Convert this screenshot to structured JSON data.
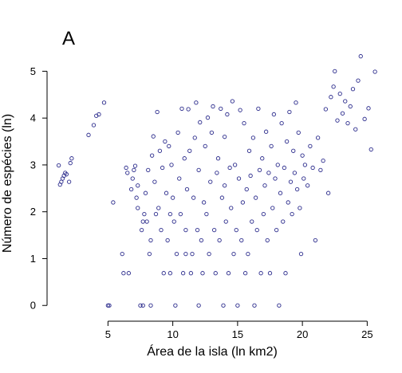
{
  "chart_data": {
    "type": "scatter",
    "panel_label": "A",
    "xlabel": "Área de la isla (ln km2)",
    "ylabel": "Número de espécies (ln)",
    "xlim": [
      0.3,
      25.9
    ],
    "ylim": [
      -0.2,
      5.5
    ],
    "xticks": [
      5,
      10,
      15,
      20,
      25
    ],
    "yticks": [
      0,
      1,
      2,
      3,
      4,
      5
    ],
    "grid": false,
    "point_color": "#2b2b8c",
    "series": [
      {
        "points": [
          [
            1.2,
            2.99
          ],
          [
            1.3,
            2.58
          ],
          [
            1.4,
            2.64
          ],
          [
            1.5,
            2.71
          ],
          [
            1.6,
            2.77
          ],
          [
            1.7,
            2.83
          ],
          [
            1.8,
            2.8
          ],
          [
            2.0,
            2.64
          ],
          [
            2.1,
            3.04
          ],
          [
            2.2,
            3.14
          ],
          [
            3.5,
            3.64
          ],
          [
            3.9,
            3.85
          ],
          [
            4.1,
            4.05
          ],
          [
            4.3,
            4.08
          ],
          [
            4.7,
            4.33
          ],
          [
            5.0,
            0.0
          ],
          [
            5.1,
            0.0
          ],
          [
            5.4,
            2.2
          ],
          [
            6.1,
            1.1
          ],
          [
            6.2,
            0.69
          ],
          [
            6.4,
            2.94
          ],
          [
            6.5,
            2.83
          ],
          [
            6.6,
            0.69
          ],
          [
            6.8,
            2.48
          ],
          [
            6.9,
            2.71
          ],
          [
            7.0,
            2.89
          ],
          [
            7.1,
            2.98
          ],
          [
            7.2,
            2.3
          ],
          [
            7.3,
            2.56
          ],
          [
            7.3,
            2.08
          ],
          [
            7.5,
            0.0
          ],
          [
            7.6,
            1.61
          ],
          [
            7.7,
            1.79
          ],
          [
            7.7,
            0.0
          ],
          [
            7.8,
            1.95
          ],
          [
            7.9,
            2.4
          ],
          [
            8.0,
            1.79
          ],
          [
            8.1,
            2.89
          ],
          [
            8.2,
            1.1
          ],
          [
            8.3,
            1.39
          ],
          [
            8.3,
            0.0
          ],
          [
            8.4,
            3.2
          ],
          [
            8.5,
            3.61
          ],
          [
            8.6,
            2.64
          ],
          [
            8.7,
            1.95
          ],
          [
            8.8,
            4.13
          ],
          [
            8.9,
            2.08
          ],
          [
            9.0,
            3.3
          ],
          [
            9.1,
            1.61
          ],
          [
            9.2,
            2.94
          ],
          [
            9.3,
            0.69
          ],
          [
            9.4,
            3.5
          ],
          [
            9.5,
            2.4
          ],
          [
            9.6,
            1.39
          ],
          [
            9.7,
            3.4
          ],
          [
            9.8,
            1.95
          ],
          [
            9.8,
            0.69
          ],
          [
            9.9,
            3.0
          ],
          [
            10.0,
            2.3
          ],
          [
            10.1,
            1.79
          ],
          [
            10.2,
            0.0
          ],
          [
            10.3,
            1.1
          ],
          [
            10.4,
            3.69
          ],
          [
            10.5,
            2.71
          ],
          [
            10.6,
            1.95
          ],
          [
            10.7,
            4.2
          ],
          [
            10.8,
            0.69
          ],
          [
            10.9,
            3.14
          ],
          [
            11.0,
            1.1
          ],
          [
            11.0,
            1.61
          ],
          [
            11.1,
            2.48
          ],
          [
            11.2,
            4.19
          ],
          [
            11.3,
            3.3
          ],
          [
            11.4,
            0.69
          ],
          [
            11.5,
            1.1
          ],
          [
            11.6,
            2.3
          ],
          [
            11.7,
            3.58
          ],
          [
            11.8,
            4.33
          ],
          [
            11.9,
            1.61
          ],
          [
            12.0,
            0.0
          ],
          [
            12.0,
            2.89
          ],
          [
            12.1,
            3.91
          ],
          [
            12.2,
            1.39
          ],
          [
            12.3,
            0.69
          ],
          [
            12.4,
            2.2
          ],
          [
            12.5,
            3.4
          ],
          [
            12.6,
            1.95
          ],
          [
            12.7,
            4.01
          ],
          [
            12.8,
            1.1
          ],
          [
            12.9,
            2.64
          ],
          [
            13.0,
            3.69
          ],
          [
            13.1,
            4.25
          ],
          [
            13.2,
            1.61
          ],
          [
            13.3,
            0.69
          ],
          [
            13.4,
            2.83
          ],
          [
            13.5,
            3.14
          ],
          [
            13.6,
            1.39
          ],
          [
            13.7,
            4.2
          ],
          [
            13.8,
            2.3
          ],
          [
            13.9,
            0.0
          ],
          [
            14.0,
            2.56
          ],
          [
            14.0,
            3.6
          ],
          [
            14.1,
            1.79
          ],
          [
            14.2,
            4.08
          ],
          [
            14.3,
            0.69
          ],
          [
            14.4,
            2.94
          ],
          [
            14.5,
            2.08
          ],
          [
            14.6,
            4.36
          ],
          [
            14.7,
            1.1
          ],
          [
            14.8,
            3.0
          ],
          [
            14.9,
            1.61
          ],
          [
            15.0,
            0.0
          ],
          [
            15.1,
            2.71
          ],
          [
            15.2,
            4.17
          ],
          [
            15.3,
            1.39
          ],
          [
            15.4,
            2.2
          ],
          [
            15.5,
            3.89
          ],
          [
            15.6,
            0.69
          ],
          [
            15.7,
            2.48
          ],
          [
            15.8,
            1.1
          ],
          [
            15.9,
            3.3
          ],
          [
            16.0,
            2.77
          ],
          [
            16.1,
            1.79
          ],
          [
            16.2,
            3.58
          ],
          [
            16.3,
            0.0
          ],
          [
            16.4,
            2.3
          ],
          [
            16.5,
            1.61
          ],
          [
            16.6,
            4.2
          ],
          [
            16.7,
            2.89
          ],
          [
            16.8,
            0.69
          ],
          [
            16.9,
            3.14
          ],
          [
            17.0,
            1.95
          ],
          [
            17.1,
            2.56
          ],
          [
            17.2,
            3.71
          ],
          [
            17.3,
            1.39
          ],
          [
            17.4,
            2.83
          ],
          [
            17.5,
            0.69
          ],
          [
            17.6,
            3.4
          ],
          [
            17.7,
            2.08
          ],
          [
            17.8,
            4.08
          ],
          [
            17.9,
            2.71
          ],
          [
            18.0,
            1.61
          ],
          [
            18.1,
            3.0
          ],
          [
            18.2,
            0.0
          ],
          [
            18.3,
            2.4
          ],
          [
            18.4,
            3.89
          ],
          [
            18.5,
            1.79
          ],
          [
            18.6,
            2.94
          ],
          [
            18.7,
            0.69
          ],
          [
            18.8,
            3.5
          ],
          [
            18.9,
            2.2
          ],
          [
            19.0,
            4.13
          ],
          [
            19.1,
            2.64
          ],
          [
            19.2,
            1.95
          ],
          [
            19.3,
            3.3
          ],
          [
            19.4,
            2.83
          ],
          [
            19.5,
            4.33
          ],
          [
            19.6,
            2.48
          ],
          [
            19.7,
            3.69
          ],
          [
            19.8,
            2.08
          ],
          [
            19.9,
            1.1
          ],
          [
            20.0,
            3.2
          ],
          [
            20.1,
            2.71
          ],
          [
            20.2,
            3.0
          ],
          [
            20.4,
            2.56
          ],
          [
            20.6,
            3.4
          ],
          [
            20.8,
            2.94
          ],
          [
            21.0,
            1.39
          ],
          [
            21.2,
            3.58
          ],
          [
            21.4,
            2.89
          ],
          [
            21.6,
            3.09
          ],
          [
            21.8,
            4.19
          ],
          [
            22.0,
            2.4
          ],
          [
            22.2,
            4.45
          ],
          [
            22.4,
            4.67
          ],
          [
            22.5,
            5.0
          ],
          [
            22.7,
            3.95
          ],
          [
            22.9,
            4.52
          ],
          [
            23.1,
            4.1
          ],
          [
            23.3,
            4.36
          ],
          [
            23.5,
            3.89
          ],
          [
            23.7,
            4.25
          ],
          [
            23.9,
            4.62
          ],
          [
            24.1,
            3.76
          ],
          [
            24.3,
            4.8
          ],
          [
            24.5,
            5.32
          ],
          [
            24.8,
            3.98
          ],
          [
            25.1,
            4.21
          ],
          [
            25.3,
            3.33
          ],
          [
            25.6,
            4.99
          ]
        ]
      }
    ]
  }
}
